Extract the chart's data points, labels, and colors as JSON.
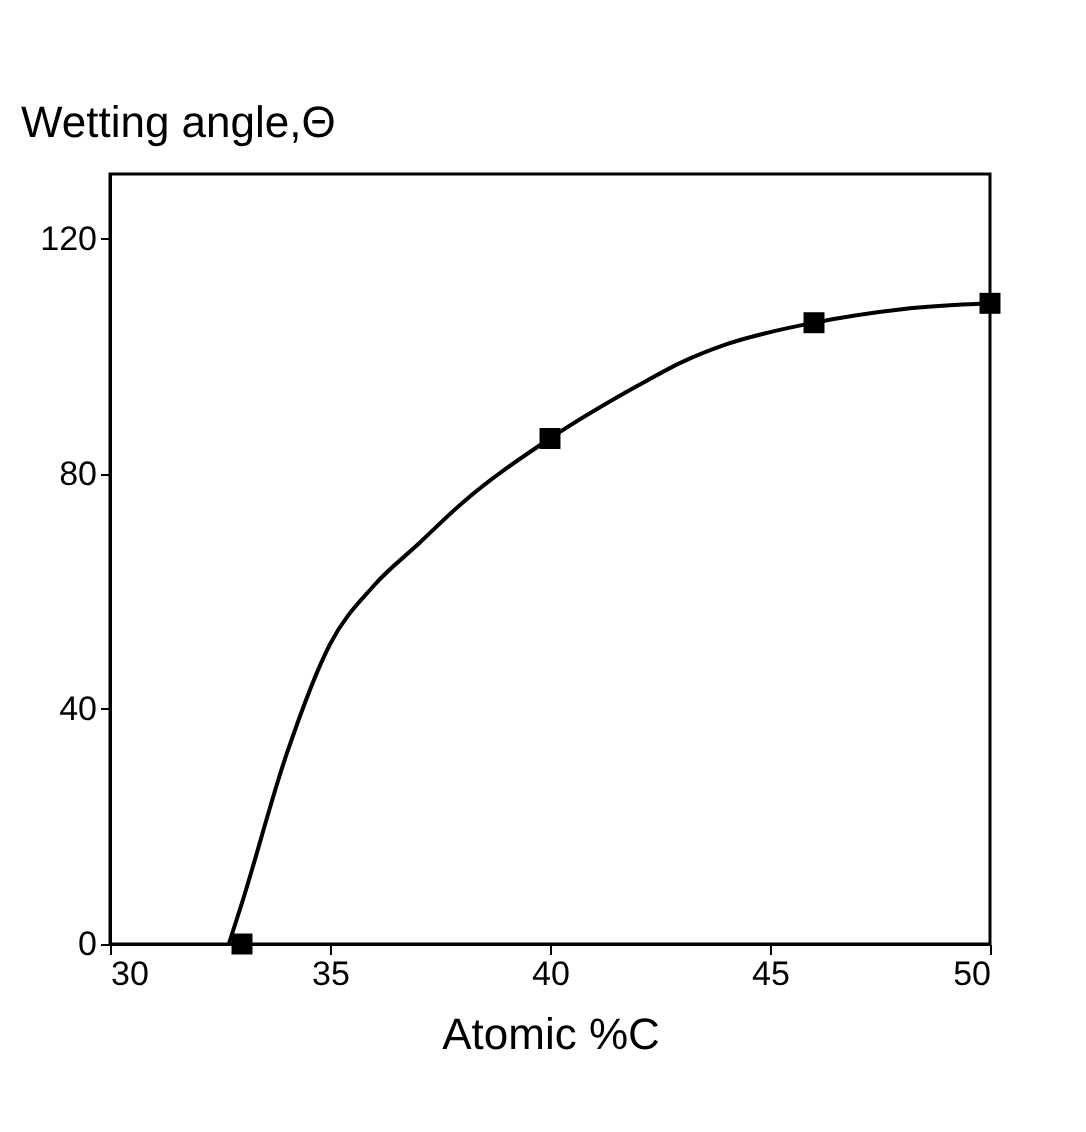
{
  "chart_data": {
    "type": "scatter",
    "ylabel": "Wetting angle,Θ",
    "xlabel": "Atomic %C",
    "xlim": [
      30,
      50
    ],
    "xticks": [
      30,
      35,
      40,
      45,
      50
    ],
    "ylim": [
      0,
      131
    ],
    "yticks": [
      0,
      40,
      80,
      120
    ],
    "grid": false,
    "marker": "square",
    "series": [
      {
        "color": "#000000",
        "x": [
          33,
          40,
          46,
          50
        ],
        "values": [
          0,
          86,
          105.7,
          109
        ]
      },
      {
        "type": "line",
        "color": "#000000",
        "marker": "none",
        "line_style": "solid",
        "x": [
          32.7,
          33,
          34,
          35,
          36,
          37,
          38,
          40,
          42,
          43,
          44,
          46,
          48,
          50
        ],
        "values": [
          0,
          7,
          32,
          51,
          61,
          68,
          75,
          86,
          95,
          99,
          102,
          105.7,
          108,
          109
        ]
      }
    ]
  }
}
